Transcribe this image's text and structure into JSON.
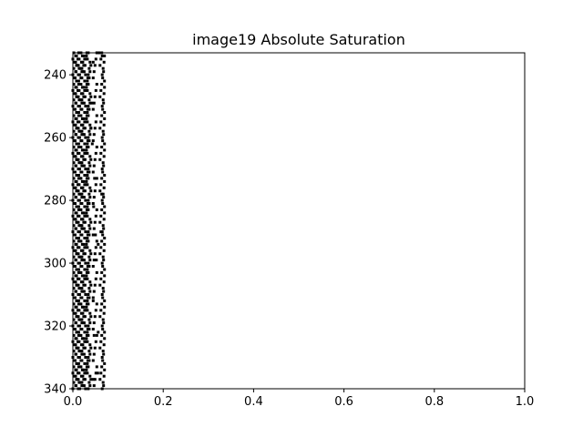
{
  "chart_data": {
    "type": "scatter",
    "title": "image19 Absolute Saturation",
    "xlabel": "",
    "ylabel": "",
    "xlim": [
      0.0,
      1.0
    ],
    "ylim": [
      340,
      233
    ],
    "y_inverted": true,
    "grid": false,
    "legend": "none",
    "marker_color": "#000000",
    "x_ticks": [
      "0.0",
      "0.2",
      "0.4",
      "0.6",
      "0.8",
      "1.0"
    ],
    "y_ticks": [
      "240",
      "260",
      "280",
      "300",
      "320",
      "340"
    ],
    "x_tick_values": [
      0.0,
      0.2,
      0.4,
      0.6,
      0.8,
      1.0
    ],
    "y_tick_values": [
      240,
      260,
      280,
      300,
      320,
      340
    ],
    "y_start": 233,
    "y_end": 340,
    "points_per_row": [
      [
        0.0,
        0.005,
        0.012,
        0.018,
        0.025,
        0.032,
        0.045,
        0.06
      ],
      [
        0.0,
        0.006,
        0.013,
        0.02,
        0.03,
        0.065
      ]
    ],
    "points": [
      {
        "x": 0.058,
        "y": 233
      },
      {
        "x": 0.065,
        "y": 234
      },
      {
        "x": 0.045,
        "y": 236
      },
      {
        "x": 0.042,
        "y": 249
      },
      {
        "x": 0.04,
        "y": 257
      },
      {
        "x": 0.043,
        "y": 262
      },
      {
        "x": 0.048,
        "y": 273
      },
      {
        "x": 0.064,
        "y": 278
      },
      {
        "x": 0.046,
        "y": 282
      },
      {
        "x": 0.062,
        "y": 290
      },
      {
        "x": 0.05,
        "y": 291
      },
      {
        "x": 0.056,
        "y": 294
      },
      {
        "x": 0.052,
        "y": 299
      },
      {
        "x": 0.045,
        "y": 312
      },
      {
        "x": 0.056,
        "y": 322
      },
      {
        "x": 0.047,
        "y": 323
      },
      {
        "x": 0.055,
        "y": 335
      },
      {
        "x": 0.045,
        "y": 337
      }
    ]
  }
}
